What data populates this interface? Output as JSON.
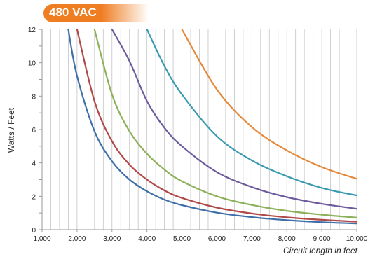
{
  "badge": {
    "label": "480 VAC",
    "color": "#ef7d22"
  },
  "chart_data": {
    "type": "line",
    "title": "480 VAC",
    "xlabel": "Circuit length in feet",
    "ylabel": "Watts / Feet",
    "xlim": [
      1000,
      10000
    ],
    "ylim": [
      0,
      12
    ],
    "x_ticks": [
      "1,000",
      "2,000",
      "3,000",
      "4,000",
      "5,000",
      "6,000",
      "7,000",
      "8,000",
      "9,000",
      "10,000"
    ],
    "y_ticks": [
      "0",
      "2",
      "4",
      "6",
      "8",
      "10",
      "12"
    ],
    "grid": {
      "vertical_every": 250,
      "horizontal": false
    },
    "x": [
      1750,
      2000,
      2500,
      3000,
      3500,
      4000,
      4500,
      5000,
      6000,
      7000,
      8000,
      9000,
      10000
    ],
    "series": [
      {
        "color": "#3f6fa8",
        "values": [
          12,
          9.2,
          5.9,
          4.1,
          3.0,
          2.3,
          1.8,
          1.47,
          1.02,
          0.75,
          0.57,
          0.45,
          0.37
        ]
      },
      {
        "color": "#b04a48",
        "values": [
          null,
          12,
          7.7,
          5.3,
          3.9,
          3.0,
          2.35,
          1.9,
          1.32,
          0.97,
          0.74,
          0.59,
          0.48
        ]
      },
      {
        "color": "#8db05a",
        "values": [
          null,
          null,
          12,
          8.1,
          5.9,
          4.55,
          3.6,
          2.9,
          2.0,
          1.48,
          1.13,
          0.9,
          0.72
        ]
      },
      {
        "color": "#6c5a9c",
        "values": [
          null,
          null,
          null,
          12,
          10.1,
          7.7,
          6.1,
          5.0,
          3.45,
          2.55,
          1.95,
          1.55,
          1.25
        ]
      },
      {
        "color": "#3a9bb0",
        "values": [
          null,
          null,
          null,
          null,
          null,
          12,
          9.8,
          8.1,
          5.6,
          4.15,
          3.2,
          2.5,
          2.05
        ]
      },
      {
        "color": "#e58a3c",
        "values": [
          null,
          null,
          null,
          null,
          null,
          null,
          null,
          12,
          8.4,
          6.15,
          4.75,
          3.75,
          3.05
        ]
      }
    ],
    "legend": "none"
  }
}
